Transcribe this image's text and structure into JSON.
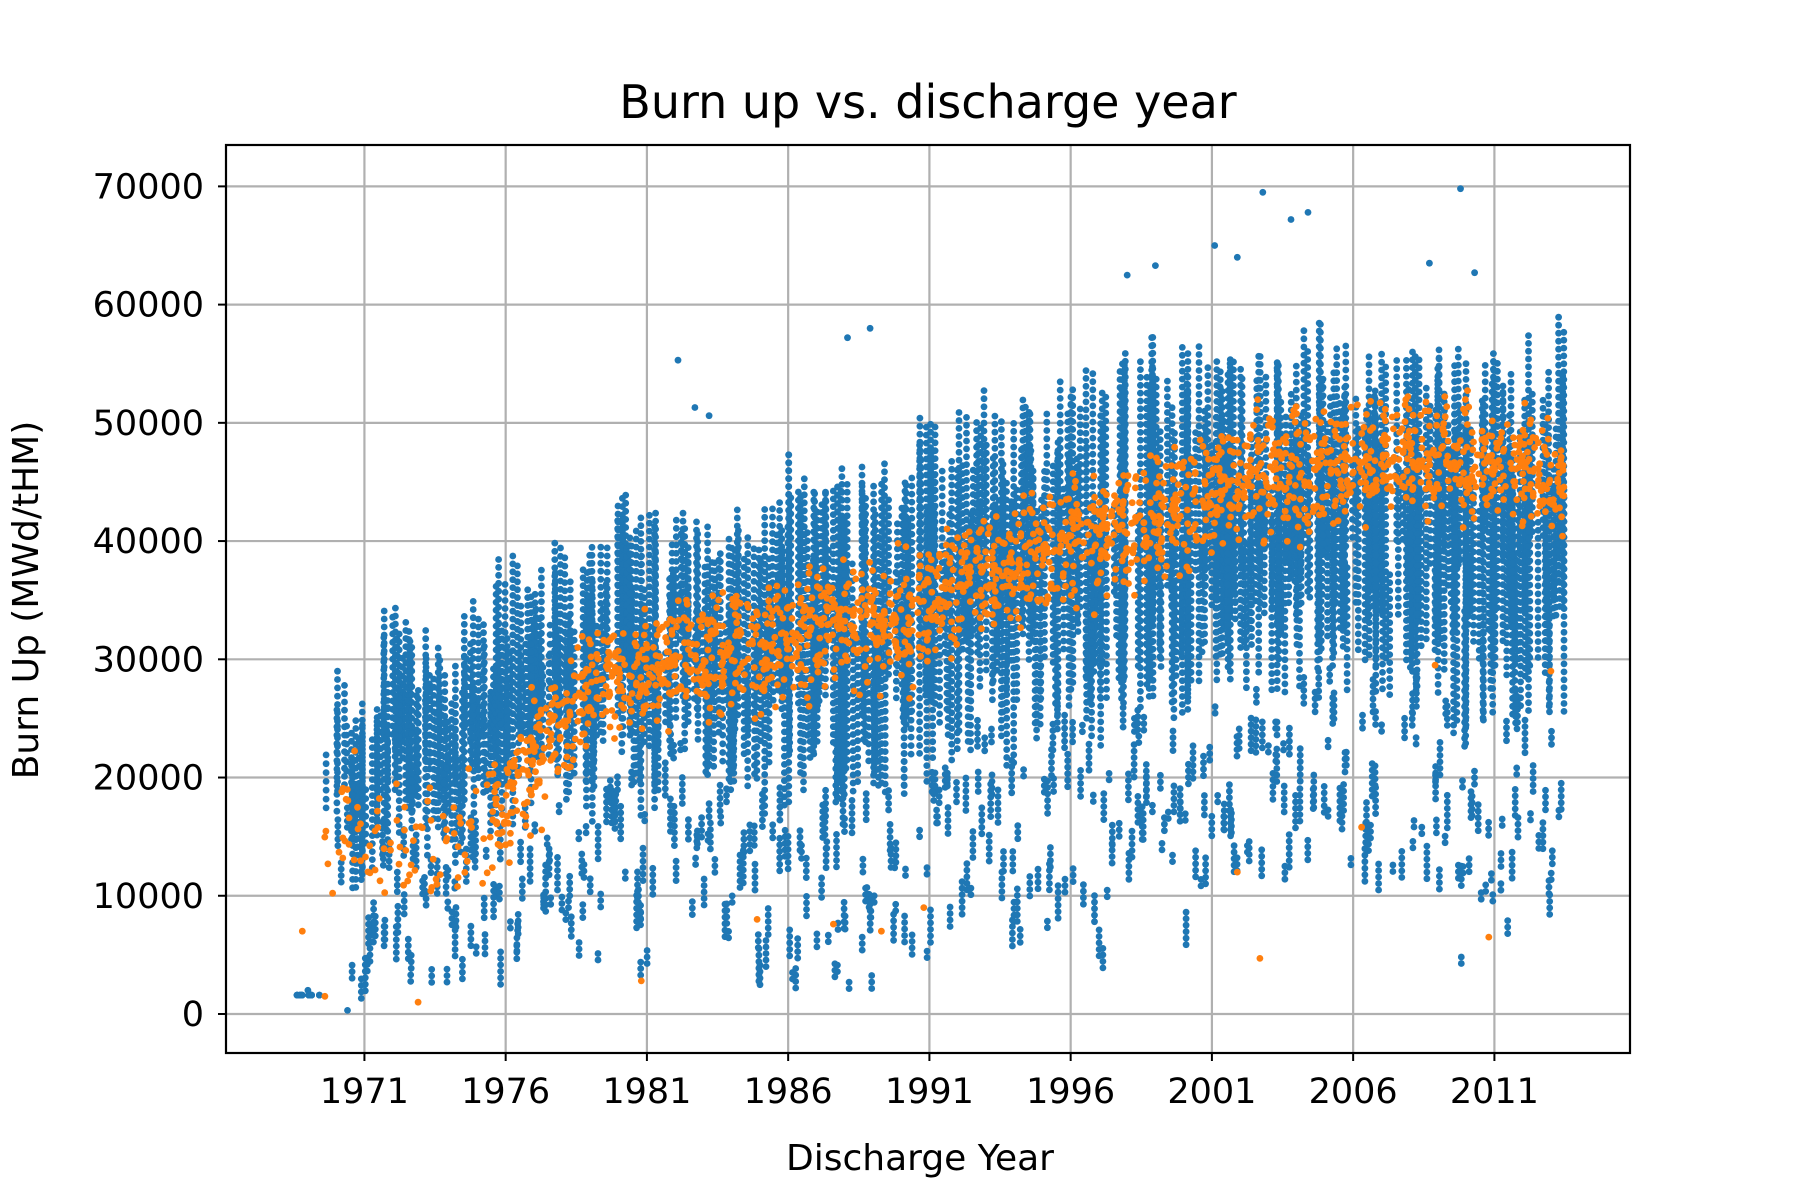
{
  "chart_data": {
    "type": "scatter",
    "title": "Burn up vs. discharge year",
    "xlabel": "Discharge Year",
    "ylabel": "Burn Up (MWd/tHM)",
    "xlim": [
      1966.1,
      2015.8
    ],
    "ylim": [
      -3300,
      73500
    ],
    "x_ticks": [
      1971,
      1976,
      1981,
      1986,
      1991,
      1996,
      2001,
      2006,
      2011
    ],
    "y_ticks": [
      0,
      10000,
      20000,
      30000,
      40000,
      50000,
      60000,
      70000
    ],
    "grid": true,
    "legend": "none",
    "colors": {
      "series_1": "#1f77b4",
      "series_2": "#ff7f0e"
    },
    "series": [
      {
        "color": "#1f77b4",
        "bands": [
          [
            1969,
            1600,
            1600
          ],
          [
            1970,
            10000,
            29000
          ],
          [
            1971,
            900,
            26500
          ],
          [
            1972,
            3000,
            34500
          ],
          [
            1973,
            2500,
            33000
          ],
          [
            1974,
            2500,
            31000
          ],
          [
            1975,
            4000,
            35500
          ],
          [
            1976,
            1500,
            39000
          ],
          [
            1977,
            6000,
            38000
          ],
          [
            1978,
            5000,
            40000
          ],
          [
            1979,
            3500,
            40000
          ],
          [
            1980,
            9000,
            44500
          ],
          [
            1981,
            2500,
            42500
          ],
          [
            1982,
            11000,
            43500
          ],
          [
            1983,
            7000,
            42000
          ],
          [
            1984,
            5000,
            43000
          ],
          [
            1985,
            2000,
            44000
          ],
          [
            1986,
            1500,
            47500
          ],
          [
            1987,
            2000,
            47000
          ],
          [
            1988,
            2000,
            47000
          ],
          [
            1989,
            2000,
            47500
          ],
          [
            1990,
            2500,
            48000
          ],
          [
            1991,
            2000,
            50500
          ],
          [
            1992,
            5000,
            51000
          ],
          [
            1993,
            11000,
            53000
          ],
          [
            1994,
            2500,
            54500
          ],
          [
            1995,
            5000,
            55500
          ],
          [
            1996,
            8000,
            56500
          ],
          [
            1997,
            2500,
            55000
          ],
          [
            1998,
            8000,
            56000
          ],
          [
            1999,
            10000,
            58000
          ],
          [
            2000,
            5500,
            57000
          ],
          [
            2001,
            10500,
            57500
          ],
          [
            2002,
            11500,
            56500
          ],
          [
            2003,
            11500,
            56000
          ],
          [
            2004,
            10000,
            58000
          ],
          [
            2005,
            11000,
            60000
          ],
          [
            2006,
            10000,
            57500
          ],
          [
            2007,
            10000,
            58000
          ],
          [
            2008,
            11500,
            57000
          ],
          [
            2009,
            10500,
            57500
          ],
          [
            2010,
            3000,
            58000
          ],
          [
            2011,
            6500,
            58000
          ],
          [
            2012,
            7000,
            57500
          ],
          [
            2013,
            7500,
            59000
          ]
        ],
        "outliers": [
          [
            1969,
            2000
          ],
          [
            1970.4,
            300
          ],
          [
            1982.1,
            55300
          ],
          [
            1982.7,
            51300
          ],
          [
            1983.2,
            50600
          ],
          [
            1988.1,
            57200
          ],
          [
            1988.9,
            58000
          ],
          [
            1998,
            62500
          ],
          [
            1999,
            63300
          ],
          [
            2001.1,
            65000
          ],
          [
            2001.9,
            64000
          ],
          [
            2002.8,
            69500
          ],
          [
            2003.8,
            67200
          ],
          [
            2004.4,
            67800
          ],
          [
            2008.7,
            63500
          ],
          [
            2009.8,
            69800
          ],
          [
            2010.3,
            62700
          ]
        ]
      },
      {
        "color": "#ff7f0e",
        "trend": [
          [
            1970,
            16000
          ],
          [
            1972,
            14000
          ],
          [
            1974,
            13000
          ],
          [
            1976,
            18000
          ],
          [
            1978,
            25000
          ],
          [
            1980,
            28000
          ],
          [
            1982,
            30000
          ],
          [
            1984,
            31000
          ],
          [
            1986,
            31500
          ],
          [
            1988,
            33000
          ],
          [
            1990,
            33000
          ],
          [
            1992,
            36000
          ],
          [
            1994,
            38000
          ],
          [
            1996,
            40000
          ],
          [
            1998,
            41000
          ],
          [
            2000,
            43000
          ],
          [
            2002,
            45000
          ],
          [
            2004,
            46000
          ],
          [
            2006,
            46500
          ],
          [
            2008,
            47000
          ],
          [
            2010,
            47000
          ],
          [
            2012,
            46000
          ],
          [
            2013,
            45000
          ]
        ],
        "outliers": [
          [
            1968.8,
            7000
          ],
          [
            1969.6,
            1500
          ],
          [
            1970.2,
            18800
          ],
          [
            1972.9,
            1000
          ],
          [
            1980.8,
            2800
          ],
          [
            1984.9,
            8000
          ],
          [
            1987.6,
            7600
          ],
          [
            1989.3,
            7000
          ],
          [
            1990.8,
            9000
          ],
          [
            2001.9,
            12000
          ],
          [
            2002.7,
            4700
          ],
          [
            2006.3,
            15800
          ],
          [
            2008.9,
            29500
          ],
          [
            2010.8,
            6500
          ],
          [
            2013,
            29000
          ]
        ]
      }
    ]
  }
}
